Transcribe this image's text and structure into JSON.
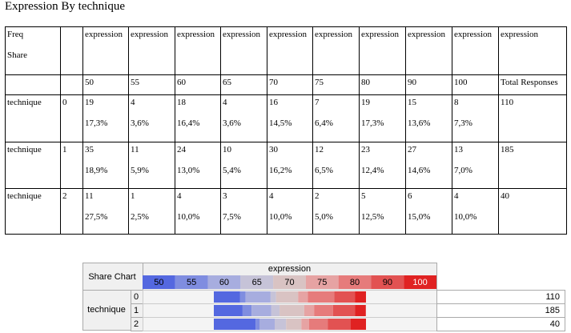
{
  "title": "Expression By technique",
  "table": {
    "corner": [
      "Freq",
      "Share"
    ],
    "header_top": [
      "expression",
      "expression",
      "expression",
      "expression",
      "expression",
      "expression",
      "expression",
      "expression",
      "expression",
      "expression"
    ],
    "header": [
      "50",
      "55",
      "60",
      "65",
      "70",
      "75",
      "80",
      "90",
      "100",
      "Total Responses"
    ],
    "rows": [
      {
        "label": "technique",
        "level": "0",
        "cells": [
          [
            "19",
            "17,3%"
          ],
          [
            "4",
            "3,6%"
          ],
          [
            "18",
            "16,4%"
          ],
          [
            "4",
            "3,6%"
          ],
          [
            "16",
            "14,5%"
          ],
          [
            "7",
            "6,4%"
          ],
          [
            "19",
            "17,3%"
          ],
          [
            "15",
            "13,6%"
          ],
          [
            "8",
            "7,3%"
          ]
        ],
        "total": "110"
      },
      {
        "label": "technique",
        "level": "1",
        "cells": [
          [
            "35",
            "18,9%"
          ],
          [
            "11",
            "5,9%"
          ],
          [
            "24",
            "13,0%"
          ],
          [
            "10",
            "5,4%"
          ],
          [
            "30",
            "16,2%"
          ],
          [
            "12",
            "6,5%"
          ],
          [
            "23",
            "12,4%"
          ],
          [
            "27",
            "14,6%"
          ],
          [
            "13",
            "7,0%"
          ]
        ],
        "total": "185"
      },
      {
        "label": "technique",
        "level": "2",
        "cells": [
          [
            "11",
            "27,5%"
          ],
          [
            "1",
            "2,5%"
          ],
          [
            "4",
            "10,0%"
          ],
          [
            "3",
            "7,5%"
          ],
          [
            "4",
            "10,0%"
          ],
          [
            "2",
            "5,0%"
          ],
          [
            "5",
            "12,5%"
          ],
          [
            "6",
            "15,0%"
          ],
          [
            "4",
            "10,0%"
          ]
        ],
        "total": "40"
      }
    ]
  },
  "share_chart": {
    "title": "Share Chart",
    "colors": [
      "#5468e0",
      "#7f8de0",
      "#a7addf",
      "#c6c3d8",
      "#d9c3c3",
      "#e6a3a3",
      "#e67b7b",
      "#e25252",
      "#e02222"
    ],
    "values": [
      [
        17.3,
        3.6,
        16.4,
        3.6,
        14.5,
        6.4,
        17.3,
        13.6,
        7.3
      ],
      [
        18.9,
        5.9,
        13.0,
        5.4,
        16.2,
        6.5,
        12.4,
        14.6,
        7.0
      ],
      [
        27.5,
        2.5,
        10.0,
        7.5,
        10.0,
        5.0,
        12.5,
        15.0,
        10.0
      ]
    ]
  }
}
